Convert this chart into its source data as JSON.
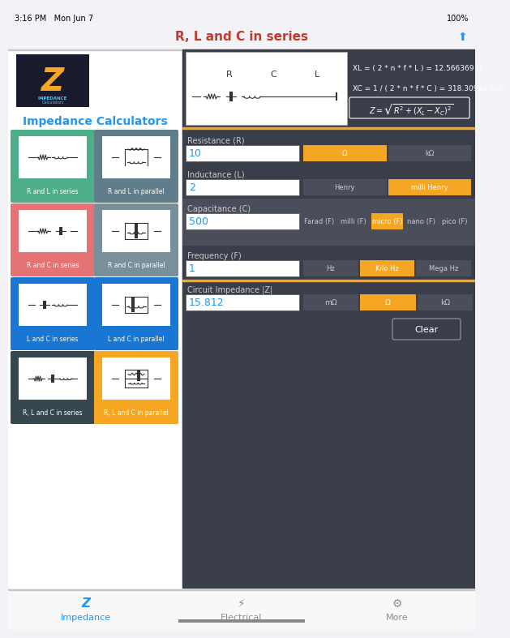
{
  "title": "R, L and C in series",
  "title_color": "#c0392b",
  "bg_color": "#f2f2f7",
  "status_bar": "3:16 PM   Mon Jun 7",
  "status_bar_right": "100%",
  "header_bg": "#f2f2f7",
  "left_panel_bg": "#ffffff",
  "right_panel_bg": "#3a3d4a",
  "logo_bg": "#1a1a2e",
  "impedance_calculators_title": "Impedance Calculators",
  "impedance_title_color": "#2196F3",
  "cards": [
    {
      "label": "R and L in series",
      "color": "#4caf8a",
      "type": "series_rl"
    },
    {
      "label": "R and L in parallel",
      "color": "#607d8b",
      "type": "parallel_rl"
    },
    {
      "label": "R and C in series",
      "color": "#e57373",
      "type": "series_rc"
    },
    {
      "label": "R and C in parallel",
      "color": "#78909c",
      "type": "parallel_rc"
    },
    {
      "label": "L and C in series",
      "color": "#1976d2",
      "type": "series_lc"
    },
    {
      "label": "L and C in parallel",
      "color": "#1976d2",
      "type": "parallel_lc"
    },
    {
      "label": "R, L and C in series",
      "color": "#37474f",
      "type": "series_rlc"
    },
    {
      "label": "R, L and C in parallel",
      "color": "#f5a623",
      "type": "parallel_rlc"
    }
  ],
  "right_panel": {
    "circuit_bg": "#ffffff",
    "formula_text_1": "XL = ( 2 * n * f * L ) = 12.566369 Ω",
    "formula_text_2": "XC = 1 / ( 2 * n * f * C ) = 318.30994 mΩ",
    "formula_text_3": "Z = √(R² + (X_L - X_C)²)",
    "dark_bg": "#3a3d4a",
    "fields": [
      {
        "label": "Resistance (R)",
        "value": "10",
        "unit_buttons": [
          "Ω",
          "kΩ"
        ],
        "active_unit": 0
      },
      {
        "label": "Inductance (L)",
        "value": "2",
        "unit_buttons": [
          "Henry",
          "milli Henry"
        ],
        "active_unit": 1
      },
      {
        "label": "Capacitance (C)",
        "value": "500",
        "unit_buttons": [
          "Farad (F)",
          "milli (F)",
          "micro (F)",
          "nano (F)",
          "pico (F)"
        ],
        "active_unit": 2
      },
      {
        "label": "Frequency (F)",
        "value": "1",
        "unit_buttons": [
          "Hz",
          "Kilo Hz",
          "Mega Hz"
        ],
        "active_unit": 1
      }
    ],
    "output_label": "Circuit Impedance |Z|",
    "output_value": "15.812",
    "output_units": [
      "mΩ",
      "Ω",
      "kΩ"
    ],
    "output_active": 1,
    "clear_button": "Clear",
    "orange_color": "#f5a623",
    "input_blue": "#2196F3",
    "input_bg": "#ffffff",
    "button_inactive_bg": "#4a4e5a",
    "button_text_inactive": "#cccccc",
    "label_text_color": "#cccccc",
    "separator_color": "#f5a623"
  },
  "tab_bar": {
    "bg": "#f8f8f8",
    "items": [
      "Impedance",
      "Electrical",
      "More"
    ],
    "active": 0,
    "active_color": "#2196F3",
    "inactive_color": "#8e8e93"
  }
}
